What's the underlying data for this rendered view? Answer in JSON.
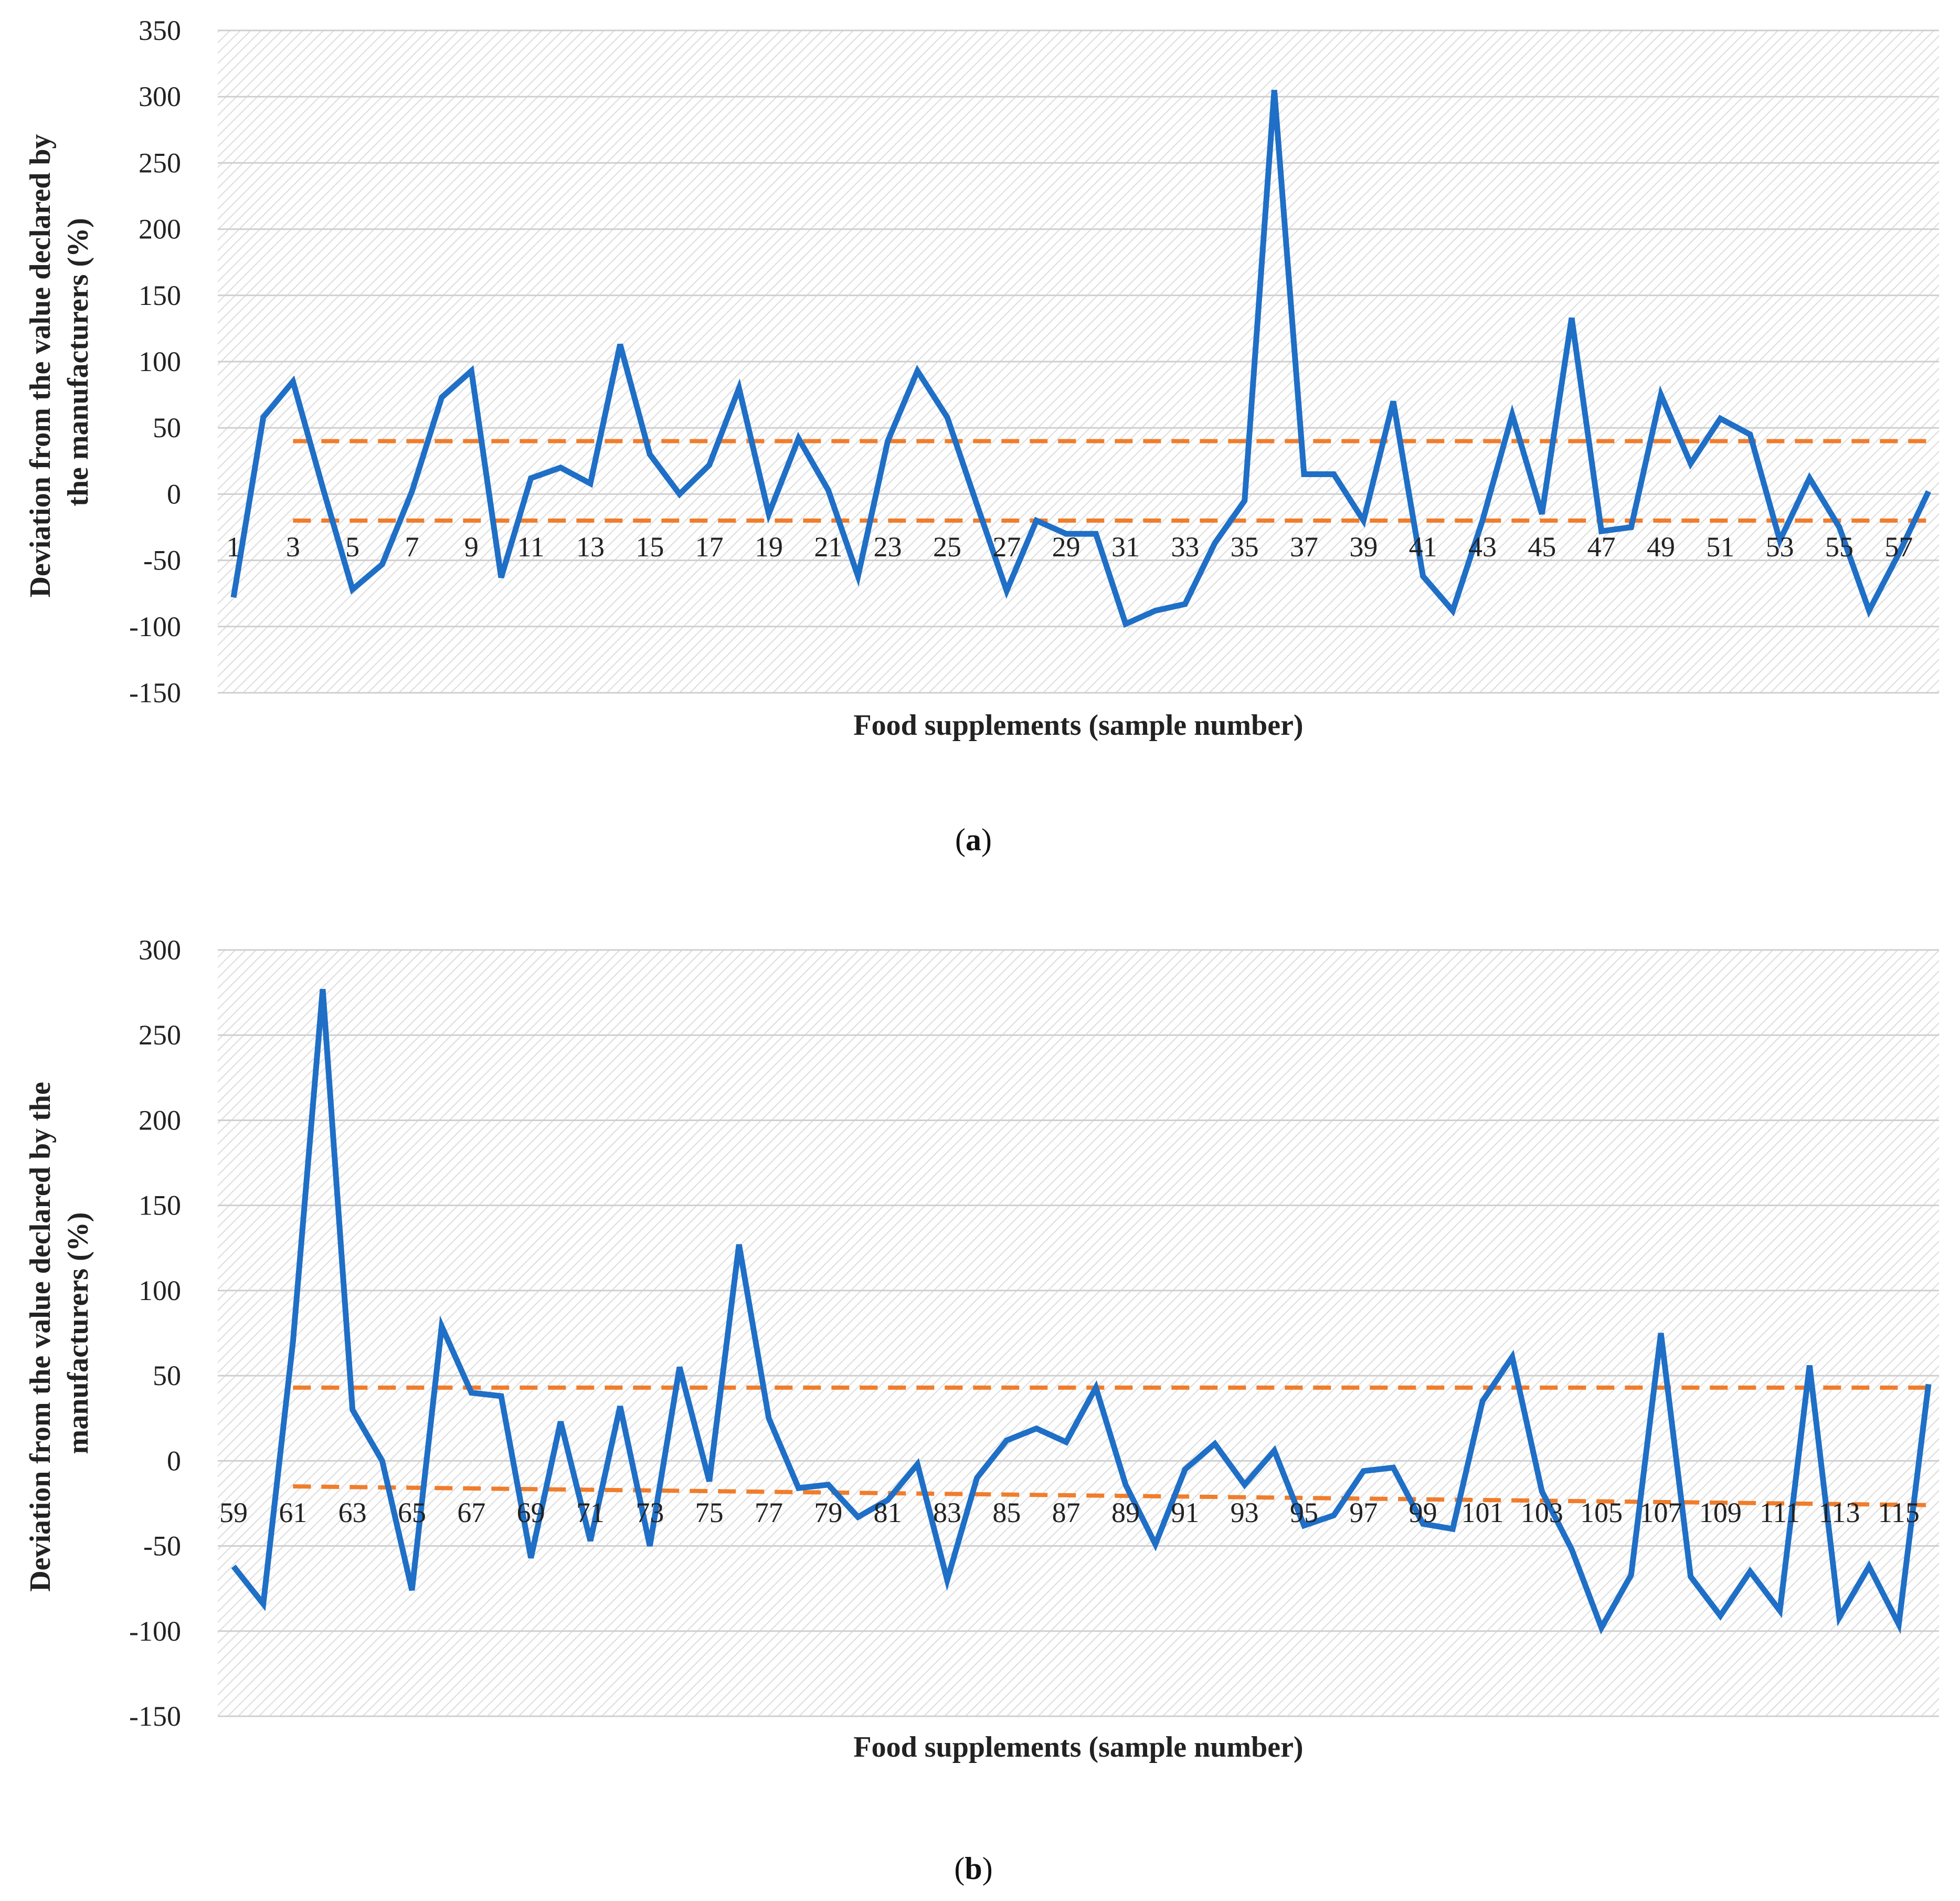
{
  "chart_data": [
    {
      "type": "line",
      "caption_letter": "a",
      "xlabel": "Food supplements (sample number)",
      "ylabel_lines": [
        "Deviation from the value declared by",
        "the manufacturers (%)"
      ],
      "ylim": [
        -150,
        350
      ],
      "yticks": [
        350,
        300,
        250,
        200,
        150,
        100,
        50,
        0,
        -50,
        -100,
        -150
      ],
      "x": [
        1,
        2,
        3,
        4,
        5,
        6,
        7,
        8,
        9,
        10,
        11,
        12,
        13,
        14,
        15,
        16,
        17,
        18,
        19,
        20,
        21,
        22,
        23,
        24,
        25,
        26,
        27,
        28,
        29,
        30,
        31,
        32,
        33,
        34,
        35,
        36,
        37,
        38,
        39,
        40,
        41,
        42,
        43,
        44,
        45,
        46,
        47,
        48,
        49,
        50,
        51,
        52,
        53,
        54,
        55,
        56,
        57,
        58
      ],
      "xtick_labels": [
        "1",
        "3",
        "5",
        "7",
        "9",
        "11",
        "13",
        "15",
        "17",
        "19",
        "21",
        "23",
        "25",
        "27",
        "29",
        "31",
        "33",
        "35",
        "37",
        "39",
        "41",
        "43",
        "45",
        "47",
        "49",
        "51",
        "53",
        "55",
        "57"
      ],
      "series": [
        {
          "name": "deviation",
          "color": "#1f6fc6",
          "values": [
            -78,
            58,
            85,
            5,
            -72,
            -53,
            2,
            73,
            93,
            -63,
            12,
            20,
            8,
            113,
            30,
            0,
            22,
            80,
            -15,
            42,
            3,
            -62,
            40,
            93,
            58,
            -8,
            -73,
            -20,
            -30,
            -30,
            -98,
            -88,
            -83,
            -37,
            -5,
            305,
            15,
            15,
            -20,
            70,
            -62,
            -88,
            -20,
            60,
            -15,
            133,
            -28,
            -25,
            75,
            23,
            57,
            45,
            -35,
            12,
            -25,
            -88,
            -45,
            2
          ]
        }
      ],
      "reference_lines": [
        {
          "name": "upper-limit",
          "color": "#f07d2c",
          "values": [
            40,
            40
          ]
        },
        {
          "name": "lower-limit",
          "color": "#f07d2c",
          "values": [
            -20,
            -20
          ]
        }
      ]
    },
    {
      "type": "line",
      "caption_letter": "b",
      "xlabel": "Food supplements (sample number)",
      "ylabel_lines": [
        "Deviation from the value declared by the",
        "manufacturers (%)"
      ],
      "ylim": [
        -150,
        300
      ],
      "yticks": [
        300,
        250,
        200,
        150,
        100,
        50,
        0,
        -50,
        -100,
        -150
      ],
      "x": [
        59,
        60,
        61,
        62,
        63,
        64,
        65,
        66,
        67,
        68,
        69,
        70,
        71,
        72,
        73,
        74,
        75,
        76,
        77,
        78,
        79,
        80,
        81,
        82,
        83,
        84,
        85,
        86,
        87,
        88,
        89,
        90,
        91,
        92,
        93,
        94,
        95,
        96,
        97,
        98,
        99,
        100,
        101,
        102,
        103,
        104,
        105,
        106,
        107,
        108,
        109,
        110,
        111,
        112,
        113,
        114,
        115,
        116
      ],
      "xtick_labels": [
        "59",
        "61",
        "63",
        "65",
        "67",
        "69",
        "71",
        "73",
        "75",
        "77",
        "79",
        "81",
        "83",
        "85",
        "87",
        "89",
        "91",
        "93",
        "95",
        "97",
        "99",
        "101",
        "103",
        "105",
        "107",
        "109",
        "111",
        "113",
        "115"
      ],
      "series": [
        {
          "name": "deviation",
          "color": "#1f6fc6",
          "values": [
            -62,
            -84,
            70,
            277,
            30,
            0,
            -76,
            79,
            40,
            38,
            -57,
            23,
            -47,
            32,
            -50,
            55,
            -12,
            127,
            25,
            -16,
            -14,
            -33,
            -23,
            -2,
            -70,
            -10,
            12,
            19,
            11,
            43,
            -14,
            -49,
            -5,
            10,
            -14,
            6,
            -38,
            -32,
            -6,
            -4,
            -37,
            -40,
            35,
            61,
            -18,
            -52,
            -98,
            -67,
            75,
            -68,
            -91,
            -65,
            -88,
            56,
            -92,
            -62,
            -96,
            45
          ]
        }
      ],
      "reference_lines": [
        {
          "name": "upper-limit",
          "color": "#f07d2c",
          "values": [
            43,
            43
          ]
        },
        {
          "name": "lower-limit",
          "color": "#f07d2c",
          "values": [
            -15,
            -26
          ]
        }
      ]
    }
  ]
}
